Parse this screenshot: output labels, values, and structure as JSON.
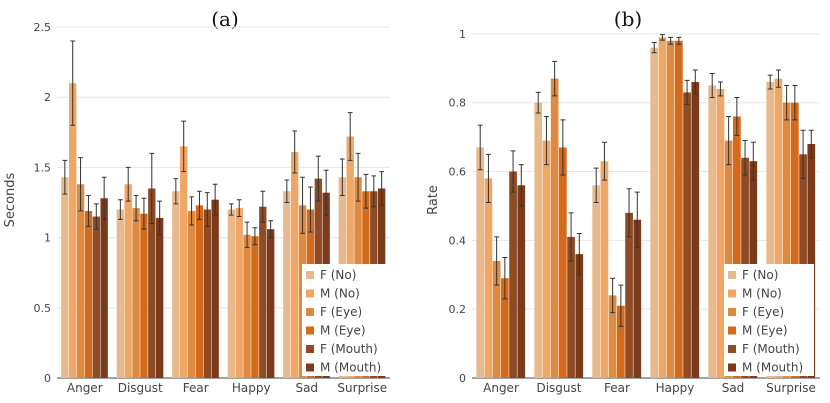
{
  "chart_data": [
    {
      "type": "bar",
      "title": "(a)",
      "xlabel": "",
      "ylabel": "Seconds",
      "ylim": [
        0,
        2.5
      ],
      "yticks": [
        0,
        0.5,
        1,
        1.5,
        2,
        2.5
      ],
      "ytick_labels": [
        "0",
        "0.5",
        "1",
        "1.5",
        "2",
        "2.5"
      ],
      "categories": [
        "Anger",
        "Disgust",
        "Fear",
        "Happy",
        "Sad",
        "Surprise"
      ],
      "legend_position": "bottom-right",
      "series": [
        {
          "name": "F (No)",
          "color": "#e7b98c",
          "values": [
            1.43,
            1.2,
            1.33,
            1.2,
            1.33,
            1.43
          ],
          "errors": [
            0.12,
            0.07,
            0.09,
            0.04,
            0.08,
            0.13
          ]
        },
        {
          "name": "M (No)",
          "color": "#f0a766",
          "values": [
            2.1,
            1.38,
            1.65,
            1.21,
            1.61,
            1.72
          ],
          "errors": [
            0.3,
            0.12,
            0.18,
            0.06,
            0.15,
            0.17
          ]
        },
        {
          "name": "F (Eye)",
          "color": "#de8a40",
          "values": [
            1.38,
            1.21,
            1.19,
            1.02,
            1.23,
            1.43
          ],
          "errors": [
            0.19,
            0.09,
            0.1,
            0.09,
            0.2,
            0.17
          ]
        },
        {
          "name": "M (Eye)",
          "color": "#d46a1c",
          "values": [
            1.19,
            1.17,
            1.23,
            1.01,
            1.2,
            1.33
          ],
          "errors": [
            0.11,
            0.11,
            0.1,
            0.06,
            0.16,
            0.12
          ]
        },
        {
          "name": "F (Mouth)",
          "color": "#8f4c24",
          "values": [
            1.15,
            1.35,
            1.2,
            1.22,
            1.42,
            1.33
          ],
          "errors": [
            0.09,
            0.25,
            0.12,
            0.11,
            0.16,
            0.11
          ]
        },
        {
          "name": "M (Mouth)",
          "color": "#7b3a1c",
          "values": [
            1.28,
            1.14,
            1.27,
            1.06,
            1.32,
            1.35
          ],
          "errors": [
            0.15,
            0.12,
            0.11,
            0.06,
            0.16,
            0.12
          ]
        }
      ]
    },
    {
      "type": "bar",
      "title": "(b)",
      "xlabel": "",
      "ylabel": "Rate",
      "ylim": [
        0,
        1.02
      ],
      "yticks": [
        0,
        0.2,
        0.4,
        0.6,
        0.8,
        1
      ],
      "ytick_labels": [
        "0",
        "0.2",
        "0.4",
        "0.6",
        "0.8",
        "1"
      ],
      "categories": [
        "Anger",
        "Disgust",
        "Fear",
        "Happy",
        "Sad",
        "Surprise"
      ],
      "legend_position": "bottom-right",
      "series": [
        {
          "name": "F (No)",
          "color": "#e7b98c",
          "values": [
            0.67,
            0.8,
            0.56,
            0.96,
            0.85,
            0.86
          ],
          "errors": [
            0.065,
            0.03,
            0.05,
            0.015,
            0.035,
            0.02
          ]
        },
        {
          "name": "M (No)",
          "color": "#f0a766",
          "values": [
            0.58,
            0.69,
            0.63,
            0.99,
            0.84,
            0.87
          ],
          "errors": [
            0.07,
            0.07,
            0.055,
            0.008,
            0.02,
            0.025
          ]
        },
        {
          "name": "F (Eye)",
          "color": "#de8a40",
          "values": [
            0.34,
            0.87,
            0.24,
            0.98,
            0.69,
            0.8
          ],
          "errors": [
            0.07,
            0.05,
            0.05,
            0.01,
            0.07,
            0.05
          ]
        },
        {
          "name": "M (Eye)",
          "color": "#d46a1c",
          "values": [
            0.29,
            0.67,
            0.21,
            0.98,
            0.76,
            0.8
          ],
          "errors": [
            0.06,
            0.08,
            0.06,
            0.01,
            0.055,
            0.05
          ]
        },
        {
          "name": "F (Mouth)",
          "color": "#8f4c24",
          "values": [
            0.6,
            0.41,
            0.48,
            0.83,
            0.64,
            0.65
          ],
          "errors": [
            0.06,
            0.07,
            0.07,
            0.035,
            0.05,
            0.07
          ]
        },
        {
          "name": "M (Mouth)",
          "color": "#7b3a1c",
          "values": [
            0.56,
            0.36,
            0.46,
            0.86,
            0.63,
            0.68
          ],
          "errors": [
            0.06,
            0.06,
            0.08,
            0.035,
            0.055,
            0.04
          ]
        }
      ]
    }
  ]
}
